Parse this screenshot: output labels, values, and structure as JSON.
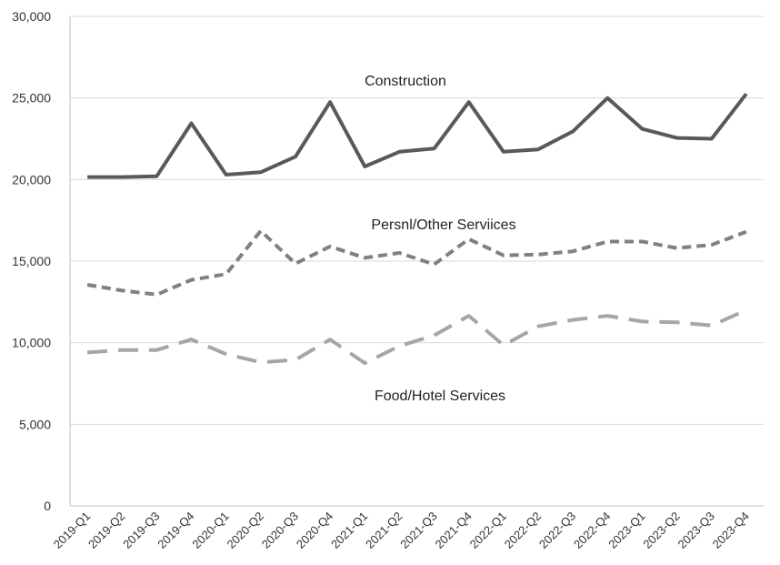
{
  "chart_data": {
    "type": "line",
    "categories": [
      "2019-Q1",
      "2019-Q2",
      "2019-Q3",
      "2019-Q4",
      "2020-Q1",
      "2020-Q2",
      "2020-Q3",
      "2020-Q4",
      "2021-Q1",
      "2021-Q2",
      "2021-Q3",
      "2021-Q4",
      "2022-Q1",
      "2022-Q2",
      "2022-Q3",
      "2022-Q4",
      "2023-Q1",
      "2023-Q2",
      "2023-Q3",
      "2023-Q4"
    ],
    "y_ticks": [
      "0",
      "5,000",
      "10,000",
      "15,000",
      "20,000",
      "25,000",
      "30,000"
    ],
    "ylim": [
      0,
      30000
    ],
    "grid": true,
    "legend": "none",
    "series": [
      {
        "name": "Construction",
        "color": "#595959",
        "style": "solid",
        "values": [
          20150,
          20150,
          20200,
          23450,
          20300,
          20450,
          21400,
          24750,
          20800,
          21700,
          21900,
          24750,
          21700,
          21850,
          22950,
          25000,
          23100,
          22550,
          22500,
          25250
        ]
      },
      {
        "name": "Persnl/Other Serviices",
        "color": "#808080",
        "style": "short-dash",
        "values": [
          13550,
          13200,
          12950,
          13850,
          14200,
          16850,
          14850,
          15900,
          15200,
          15500,
          14800,
          16350,
          15350,
          15400,
          15600,
          16200,
          16200,
          15800,
          16000,
          16800
        ]
      },
      {
        "name": "Food/Hotel Services",
        "color": "#a6a6a6",
        "style": "long-dash",
        "values": [
          9400,
          9550,
          9550,
          10200,
          9300,
          8800,
          8950,
          10200,
          8750,
          9800,
          10450,
          11650,
          9850,
          11000,
          11400,
          11650,
          11300,
          11250,
          11050,
          12000
        ]
      }
    ]
  }
}
